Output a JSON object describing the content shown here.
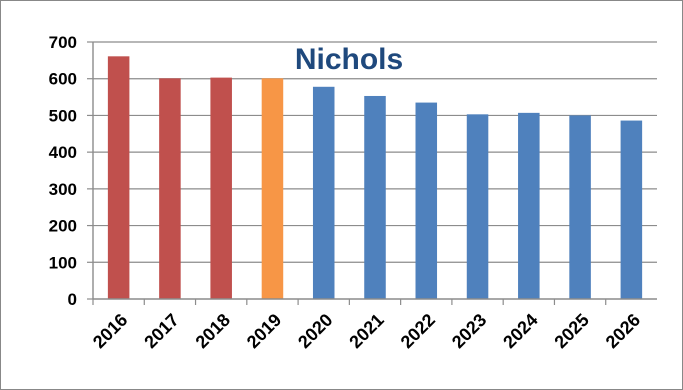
{
  "chart_data": {
    "type": "bar",
    "title": "Nichols",
    "categories": [
      "2016",
      "2017",
      "2018",
      "2019",
      "2020",
      "2021",
      "2022",
      "2023",
      "2024",
      "2025",
      "2026"
    ],
    "values": [
      661,
      601,
      603,
      601,
      578,
      553,
      535,
      503,
      507,
      500,
      486
    ],
    "bar_colors": [
      "#c0504d",
      "#c0504d",
      "#c0504d",
      "#f79646",
      "#4f81bd",
      "#4f81bd",
      "#4f81bd",
      "#4f81bd",
      "#4f81bd",
      "#4f81bd",
      "#4f81bd"
    ],
    "ylim": [
      0,
      700
    ],
    "yticks": [
      0,
      100,
      200,
      300,
      400,
      500,
      600,
      700
    ],
    "grid": true,
    "title_color": "#1f497d"
  }
}
